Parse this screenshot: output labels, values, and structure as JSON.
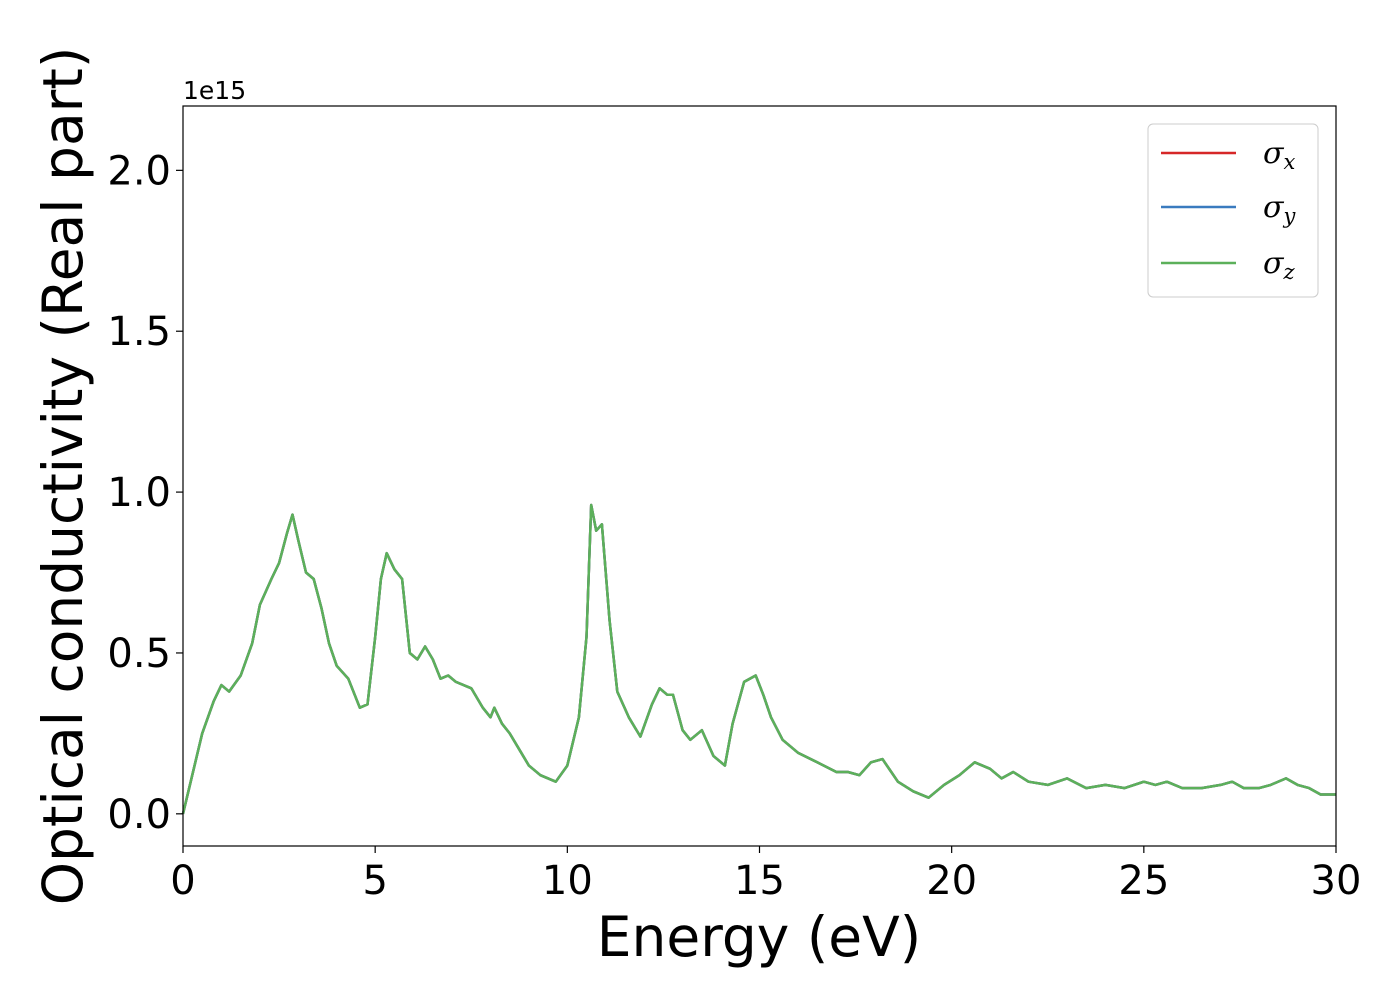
{
  "chart_data": {
    "type": "line",
    "title": "",
    "xlabel": "Energy (eV)",
    "ylabel": "Optical conductivity (Real part)",
    "y_offset_label": "1e15",
    "xlim": [
      0,
      30
    ],
    "ylim": [
      -0.1,
      2.2
    ],
    "grid": false,
    "legend_position": "top-right",
    "x_ticks": [
      "0",
      "5",
      "10",
      "15",
      "20",
      "25",
      "30"
    ],
    "y_ticks": [
      "0.0",
      "0.5",
      "1.0",
      "1.5",
      "2.0"
    ],
    "x_tick_values": [
      0,
      5,
      10,
      15,
      20,
      25,
      30
    ],
    "y_tick_values": [
      0.0,
      0.5,
      1.0,
      1.5,
      2.0
    ],
    "x": [
      0.0,
      0.2,
      0.5,
      0.8,
      1.0,
      1.2,
      1.5,
      1.8,
      2.0,
      2.3,
      2.5,
      2.7,
      2.85,
      3.0,
      3.2,
      3.4,
      3.6,
      3.8,
      4.0,
      4.3,
      4.6,
      4.8,
      5.0,
      5.15,
      5.3,
      5.5,
      5.7,
      5.9,
      6.1,
      6.3,
      6.5,
      6.7,
      6.9,
      7.1,
      7.5,
      7.8,
      8.0,
      8.1,
      8.3,
      8.5,
      8.8,
      9.0,
      9.3,
      9.7,
      10.0,
      10.3,
      10.5,
      10.62,
      10.75,
      10.9,
      11.1,
      11.3,
      11.6,
      11.9,
      12.2,
      12.4,
      12.6,
      12.75,
      13.0,
      13.2,
      13.5,
      13.8,
      14.1,
      14.3,
      14.6,
      14.9,
      15.1,
      15.3,
      15.6,
      16.0,
      16.5,
      17.0,
      17.3,
      17.6,
      17.9,
      18.2,
      18.6,
      19.0,
      19.4,
      19.8,
      20.2,
      20.6,
      21.0,
      21.3,
      21.6,
      22.0,
      22.5,
      23.0,
      23.5,
      24.0,
      24.5,
      25.0,
      25.3,
      25.6,
      26.0,
      26.5,
      27.0,
      27.3,
      27.6,
      28.0,
      28.3,
      28.7,
      29.0,
      29.3,
      29.6,
      30.0
    ],
    "series": [
      {
        "name": "σx",
        "color": "#d62728"
      },
      {
        "name": "σy",
        "color": "#3a7bbf"
      },
      {
        "name": "σz",
        "color": "#5cb05a"
      }
    ],
    "values": [
      0.0,
      0.1,
      0.25,
      0.35,
      0.4,
      0.38,
      0.43,
      0.53,
      0.65,
      0.73,
      0.78,
      0.87,
      0.93,
      0.85,
      0.75,
      0.73,
      0.64,
      0.53,
      0.46,
      0.42,
      0.33,
      0.34,
      0.55,
      0.73,
      0.81,
      0.76,
      0.73,
      0.5,
      0.48,
      0.52,
      0.48,
      0.42,
      0.43,
      0.41,
      0.39,
      0.33,
      0.3,
      0.33,
      0.28,
      0.25,
      0.19,
      0.15,
      0.12,
      0.1,
      0.15,
      0.3,
      0.55,
      0.96,
      0.88,
      0.9,
      0.6,
      0.38,
      0.3,
      0.24,
      0.34,
      0.39,
      0.37,
      0.37,
      0.26,
      0.23,
      0.26,
      0.18,
      0.15,
      0.28,
      0.41,
      0.43,
      0.37,
      0.3,
      0.23,
      0.19,
      0.16,
      0.13,
      0.13,
      0.12,
      0.16,
      0.17,
      0.1,
      0.07,
      0.05,
      0.09,
      0.12,
      0.16,
      0.14,
      0.11,
      0.13,
      0.1,
      0.09,
      0.11,
      0.08,
      0.09,
      0.08,
      0.1,
      0.09,
      0.1,
      0.08,
      0.08,
      0.09,
      0.1,
      0.08,
      0.08,
      0.09,
      0.11,
      0.09,
      0.08,
      0.06,
      0.06
    ]
  }
}
